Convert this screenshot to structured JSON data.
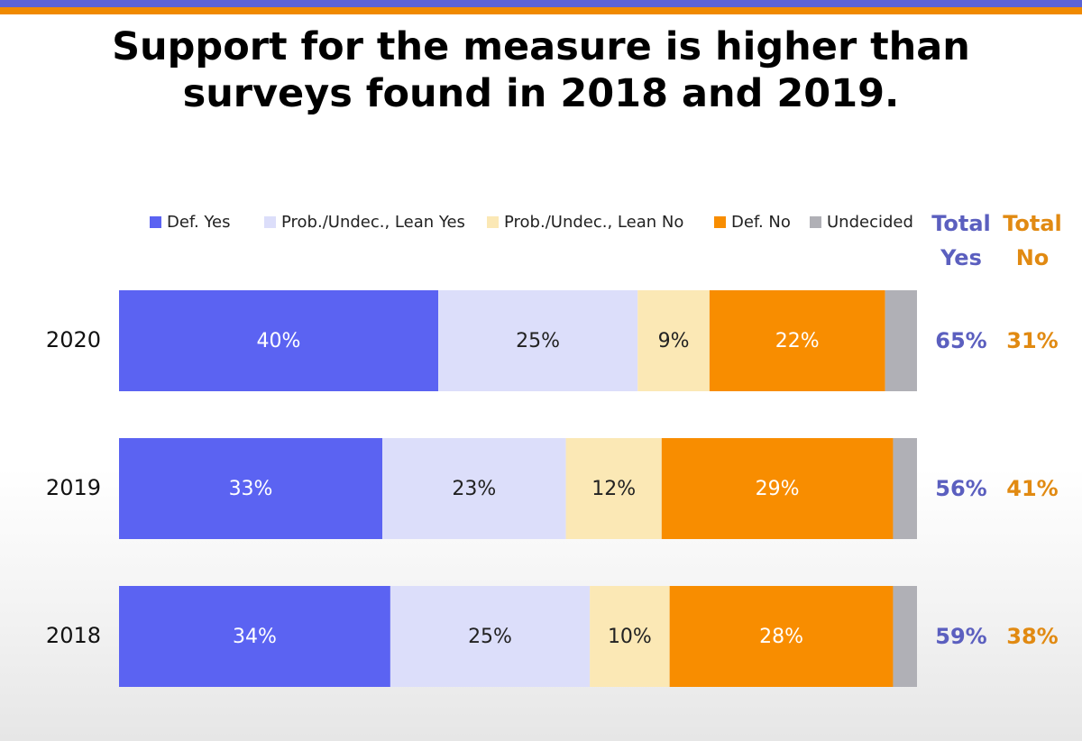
{
  "title_line1": "Support for the measure is higher than",
  "title_line2": "surveys found in 2018 and 2019.",
  "colors": {
    "def_yes": "#5b63f2",
    "lean_yes": "#dcdefa",
    "lean_no": "#fbe8b5",
    "def_no": "#f88d00",
    "undecided": "#b0b0b6",
    "total_yes_text": "#5b5fbf",
    "total_no_text": "#e18a12",
    "top_bar_blue": "#5b63d6",
    "top_bar_orange": "#f08a00"
  },
  "chart_data": {
    "type": "bar",
    "orientation": "horizontal",
    "stacked": true,
    "categories": [
      "2020",
      "2019",
      "2018"
    ],
    "series": [
      {
        "name": "Def. Yes",
        "values": [
          40,
          33,
          34
        ],
        "labels": [
          "40%",
          "33%",
          "34%"
        ]
      },
      {
        "name": "Prob./Undec., Lean Yes",
        "values": [
          25,
          23,
          25
        ],
        "labels": [
          "25%",
          "23%",
          "25%"
        ]
      },
      {
        "name": "Prob./Undec., Lean No",
        "values": [
          9,
          12,
          10
        ],
        "labels": [
          "9%",
          "12%",
          "10%"
        ]
      },
      {
        "name": "Def. No",
        "values": [
          22,
          29,
          28
        ],
        "labels": [
          "22%",
          "29%",
          "28%"
        ]
      },
      {
        "name": "Undecided",
        "values": [
          4,
          3,
          3
        ],
        "labels": [
          "",
          "",
          ""
        ]
      }
    ],
    "totals_header_yes": [
      "Total",
      "Yes"
    ],
    "totals_header_no": [
      "Total",
      "No"
    ],
    "total_yes": [
      "65%",
      "56%",
      "59%"
    ],
    "total_no": [
      "31%",
      "41%",
      "38%"
    ],
    "xlim": [
      0,
      100
    ],
    "legend_position": "top",
    "grid": false
  }
}
